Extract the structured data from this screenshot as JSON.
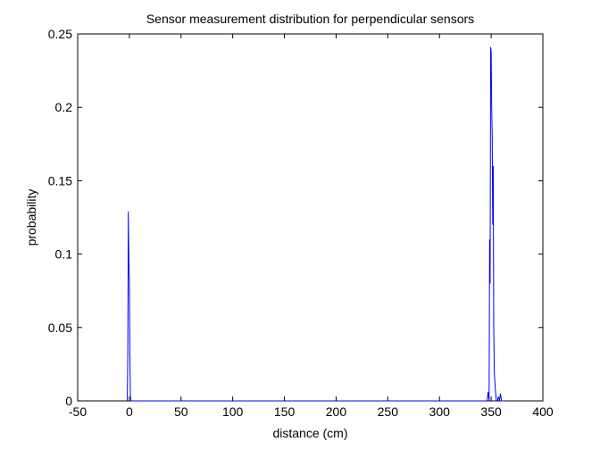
{
  "chart_data": {
    "type": "line",
    "title": "Sensor measurement distribution for perpendicular sensors",
    "xlabel": "distance (cm)",
    "ylabel": "probability",
    "xlim": [
      -50,
      400
    ],
    "ylim": [
      0,
      0.25
    ],
    "xticks": [
      -50,
      0,
      50,
      100,
      150,
      200,
      250,
      300,
      350,
      400
    ],
    "yticks": [
      0,
      0.05,
      0.1,
      0.15,
      0.2,
      0.25
    ],
    "xtick_labels": [
      "-50",
      "0",
      "50",
      "100",
      "150",
      "200",
      "250",
      "300",
      "350",
      "400"
    ],
    "ytick_labels": [
      "0",
      "0.05",
      "0.1",
      "0.15",
      "0.2",
      "0.25"
    ],
    "grid": false,
    "legend": "none",
    "series": [
      {
        "color": "#0000ff",
        "x": [
          -2,
          -1.5,
          -1,
          -0.5,
          0,
          0.5,
          1,
          1.5,
          2,
          3,
          4,
          345,
          346,
          347,
          348,
          348.5,
          349,
          349.5,
          350,
          350.5,
          351,
          351.5,
          352,
          352.5,
          353,
          354,
          355,
          356,
          357,
          358,
          359,
          360,
          361,
          362,
          363
        ],
        "y": [
          0,
          0.033,
          0.129,
          0.096,
          0.082,
          0.03,
          0.004,
          0,
          0,
          0,
          0,
          0,
          0,
          0.006,
          0,
          0.11,
          0.08,
          0.241,
          0.238,
          0.2,
          0.18,
          0.12,
          0.16,
          0.05,
          0.02,
          0.008,
          0,
          0,
          0.003,
          0,
          0.005,
          0,
          0,
          0,
          0
        ]
      }
    ]
  }
}
